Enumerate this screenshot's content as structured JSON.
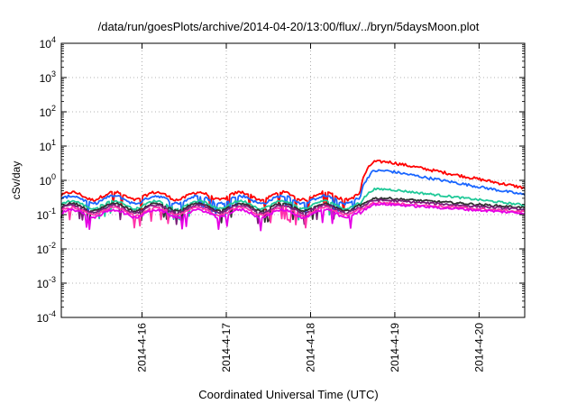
{
  "chart_data": {
    "type": "line",
    "title": "/data/run/goesPlots/archive/2014-04-20/13:00/flux/../bryn/5daysMoon.plot",
    "xlabel": "Coordinated Universal Time (UTC)",
    "ylabel": "cSv/day",
    "y_scale": "log",
    "ylim": [
      0.0001,
      10000
    ],
    "y_ticks": [
      {
        "exp": "-4",
        "base": "10"
      },
      {
        "exp": "-3",
        "base": "10"
      },
      {
        "exp": "-2",
        "base": "10"
      },
      {
        "exp": "-1",
        "base": "10"
      },
      {
        "exp": "0",
        "base": "10"
      },
      {
        "exp": "1",
        "base": "10"
      },
      {
        "exp": "2",
        "base": "10"
      },
      {
        "exp": "3",
        "base": "10"
      },
      {
        "exp": "4",
        "base": "10"
      }
    ],
    "xlim": [
      "2014-04-15 01:00",
      "2014-04-20 13:00"
    ],
    "x_ticks": [
      "2014-4-16",
      "2014-4-17",
      "2014-4-18",
      "2014-4-19",
      "2014-4-20"
    ],
    "grid": true,
    "series": [
      {
        "color": "#ff0000",
        "pre_event": 0.36,
        "peak": 3.5,
        "end": 0.6,
        "noise": 0.1
      },
      {
        "color": "#1a66ff",
        "pre_event": 0.28,
        "peak": 1.9,
        "end": 0.38,
        "noise": 0.09
      },
      {
        "color": "#20c998",
        "pre_event": 0.2,
        "peak": 0.55,
        "end": 0.19,
        "noise": 0.07
      },
      {
        "color": "#303030",
        "pre_event": 0.17,
        "peak": 0.3,
        "end": 0.16,
        "noise": 0.07
      },
      {
        "color": "#7a1f7a",
        "pre_event": 0.15,
        "peak": 0.26,
        "end": 0.14,
        "noise": 0.07
      },
      {
        "color": "#ff33aa",
        "pre_event": 0.13,
        "peak": 0.22,
        "end": 0.12,
        "noise": 0.07
      },
      {
        "color": "#e600e6",
        "pre_event": 0.11,
        "peak": 0.2,
        "end": 0.11,
        "noise": 0.08
      }
    ],
    "event_onset": "2014-04-18 14:00"
  }
}
